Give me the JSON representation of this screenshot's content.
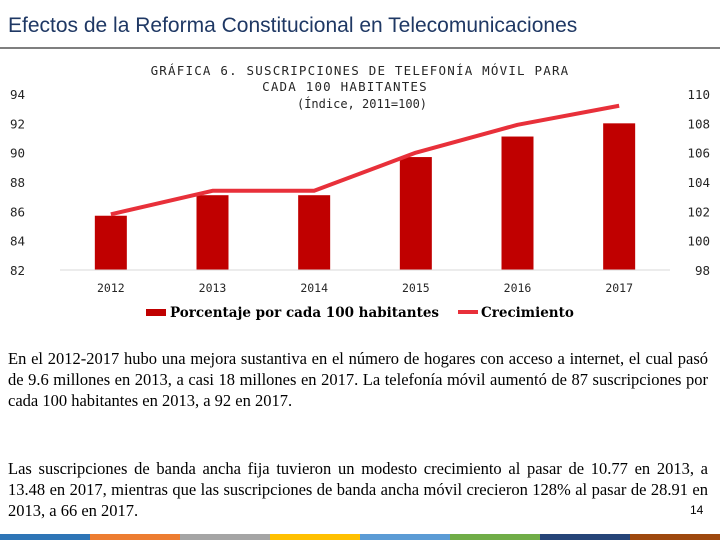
{
  "slide": {
    "title": "Efectos de la Reforma Constitucional en Telecomunicaciones",
    "page_number": "14"
  },
  "chart_data": {
    "type": "bar",
    "title": "GRÁFICA 6. SUSCRIPCIONES DE TELEFONÍA MÓVIL PARA CADA 100 HABITANTES",
    "subtitle": "(Índice, 2011=100)",
    "categories": [
      "2012",
      "2013",
      "2014",
      "2015",
      "2016",
      "2017"
    ],
    "series": [
      {
        "name": "Porcentaje por cada 100 habitantes",
        "type": "bar",
        "axis": "left",
        "values": [
          85.7,
          87.1,
          87.1,
          89.7,
          91.1,
          92.0
        ]
      },
      {
        "name": "Crecimiento",
        "type": "line",
        "axis": "right",
        "values": [
          101.8,
          103.4,
          103.4,
          106.0,
          107.9,
          109.2
        ]
      }
    ],
    "y_left": {
      "range": [
        82,
        94
      ],
      "ticks": [
        "82",
        "84",
        "86",
        "88",
        "90",
        "92",
        "94"
      ]
    },
    "y_right": {
      "range": [
        98,
        110
      ],
      "ticks": [
        "98",
        "100",
        "102",
        "104",
        "106",
        "108",
        "110"
      ]
    },
    "legend_position": "bottom",
    "colors": {
      "bar": "#c00000",
      "line": "#e8303a"
    }
  },
  "paragraphs": [
    "En el 2012-2017 hubo una mejora sustantiva en el número de hogares con acceso a internet, el cual pasó de 9.6 millones en 2013, a casi 18 millones en 2017. La telefonía móvil aumentó de 87 suscripciones por cada 100 habitantes en 2013, a 92 en 2017.",
    "Las suscripciones de banda ancha fija tuvieron un modesto crecimiento al pasar de 10.77 en 2013, a 13.48 en 2017, mientras que las suscripciones de banda ancha móvil crecieron 128% al pasar de 28.91 en 2013, a 66 en 2017."
  ],
  "footer_colors": [
    "#2e75b6",
    "#ed7d31",
    "#a5a5a5",
    "#ffc000",
    "#5b9bd5",
    "#70ad47",
    "#264478",
    "#9e480e"
  ]
}
